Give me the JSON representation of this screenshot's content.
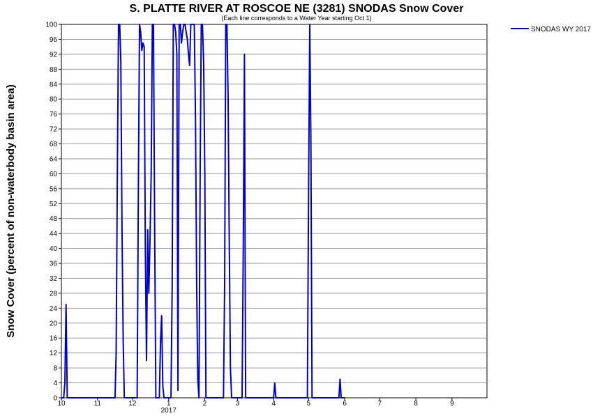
{
  "chart_data": {
    "type": "line",
    "title": "S. PLATTE RIVER AT ROSCOE NE (3281) SNODAS Snow Cover",
    "subtitle": "(Each line corresponds to a Water Year starting Oct 1)",
    "ylabel": "Snow Cover (percent of non-waterbody basin area)",
    "xlabel": "",
    "ylim": [
      0,
      100
    ],
    "xlim": [
      "2016-10-01",
      "2017-09-30"
    ],
    "grid": true,
    "legend": "top-right",
    "y_ticks": [
      "0",
      "4",
      "8",
      "12",
      "16",
      "20",
      "24",
      "28",
      "32",
      "36",
      "40",
      "44",
      "48",
      "52",
      "56",
      "60",
      "64",
      "68",
      "72",
      "76",
      "80",
      "84",
      "88",
      "92",
      "96",
      "100"
    ],
    "x_ticks": [
      {
        "label": "10",
        "date": "2016-10-01"
      },
      {
        "label": "11",
        "date": "2016-11-01"
      },
      {
        "label": "12",
        "date": "2016-12-01"
      },
      {
        "label": "1",
        "date": "2017-01-01"
      },
      {
        "label": "2",
        "date": "2017-02-01"
      },
      {
        "label": "3",
        "date": "2017-03-01"
      },
      {
        "label": "4",
        "date": "2017-04-01"
      },
      {
        "label": "5",
        "date": "2017-05-01"
      },
      {
        "label": "6",
        "date": "2017-06-01"
      },
      {
        "label": "7",
        "date": "2017-07-01"
      },
      {
        "label": "8",
        "date": "2017-08-01"
      },
      {
        "label": "9",
        "date": "2017-09-01"
      }
    ],
    "year_label": {
      "label": "2017",
      "date": "2017-01-01"
    },
    "series": [
      {
        "name": "SNODAS WY 2017",
        "color": "#0000cc",
        "points": [
          [
            "2016-10-01",
            0
          ],
          [
            "2016-10-03",
            0
          ],
          [
            "2016-10-04",
            4
          ],
          [
            "2016-10-05",
            25
          ],
          [
            "2016-10-06",
            0
          ],
          [
            "2016-11-16",
            0
          ],
          [
            "2016-11-17",
            12
          ],
          [
            "2016-11-18",
            60
          ],
          [
            "2016-11-19",
            100
          ],
          [
            "2016-11-20",
            100
          ],
          [
            "2016-11-21",
            90
          ],
          [
            "2016-11-22",
            45
          ],
          [
            "2016-11-23",
            15
          ],
          [
            "2016-11-24",
            0
          ],
          [
            "2016-12-05",
            0
          ],
          [
            "2016-12-06",
            55
          ],
          [
            "2016-12-07",
            100
          ],
          [
            "2016-12-08",
            98
          ],
          [
            "2016-12-09",
            93
          ],
          [
            "2016-12-10",
            95
          ],
          [
            "2016-12-11",
            94
          ],
          [
            "2016-12-12",
            40
          ],
          [
            "2016-12-13",
            10
          ],
          [
            "2016-12-14",
            45
          ],
          [
            "2016-12-15",
            28
          ],
          [
            "2016-12-16",
            42
          ],
          [
            "2016-12-17",
            60
          ],
          [
            "2016-12-18",
            100
          ],
          [
            "2016-12-19",
            100
          ],
          [
            "2016-12-20",
            45
          ],
          [
            "2016-12-21",
            0
          ],
          [
            "2016-12-24",
            0
          ],
          [
            "2016-12-25",
            15
          ],
          [
            "2016-12-26",
            22
          ],
          [
            "2016-12-27",
            3
          ],
          [
            "2016-12-28",
            0
          ],
          [
            "2017-01-03",
            0
          ],
          [
            "2017-01-04",
            30
          ],
          [
            "2017-01-05",
            100
          ],
          [
            "2017-01-06",
            100
          ],
          [
            "2017-01-07",
            98
          ],
          [
            "2017-01-08",
            92
          ],
          [
            "2017-01-09",
            2
          ],
          [
            "2017-01-10",
            100
          ],
          [
            "2017-01-11",
            100
          ],
          [
            "2017-01-12",
            95
          ],
          [
            "2017-01-13",
            98
          ],
          [
            "2017-01-14",
            100
          ],
          [
            "2017-01-15",
            100
          ],
          [
            "2017-01-16",
            98
          ],
          [
            "2017-01-17",
            96
          ],
          [
            "2017-01-18",
            92
          ],
          [
            "2017-01-19",
            89
          ],
          [
            "2017-01-20",
            100
          ],
          [
            "2017-01-21",
            100
          ],
          [
            "2017-01-22",
            100
          ],
          [
            "2017-01-23",
            100
          ],
          [
            "2017-01-24",
            75
          ],
          [
            "2017-01-25",
            30
          ],
          [
            "2017-01-26",
            5
          ],
          [
            "2017-01-27",
            0
          ],
          [
            "2017-01-28",
            60
          ],
          [
            "2017-01-29",
            100
          ],
          [
            "2017-01-30",
            100
          ],
          [
            "2017-01-31",
            90
          ],
          [
            "2017-02-01",
            60
          ],
          [
            "2017-02-02",
            0
          ],
          [
            "2017-02-17",
            0
          ],
          [
            "2017-02-18",
            30
          ],
          [
            "2017-02-19",
            100
          ],
          [
            "2017-02-20",
            100
          ],
          [
            "2017-02-21",
            80
          ],
          [
            "2017-02-22",
            40
          ],
          [
            "2017-02-23",
            8
          ],
          [
            "2017-02-24",
            0
          ],
          [
            "2017-03-05",
            0
          ],
          [
            "2017-03-06",
            40
          ],
          [
            "2017-03-07",
            92
          ],
          [
            "2017-03-08",
            0
          ],
          [
            "2017-04-01",
            0
          ],
          [
            "2017-04-02",
            4
          ],
          [
            "2017-04-03",
            0
          ],
          [
            "2017-04-30",
            0
          ],
          [
            "2017-05-01",
            55
          ],
          [
            "2017-05-02",
            100
          ],
          [
            "2017-05-03",
            70
          ],
          [
            "2017-05-04",
            0
          ],
          [
            "2017-05-27",
            0
          ],
          [
            "2017-05-28",
            5
          ],
          [
            "2017-05-29",
            0
          ],
          [
            "2017-06-01",
            0
          ]
        ]
      }
    ]
  }
}
